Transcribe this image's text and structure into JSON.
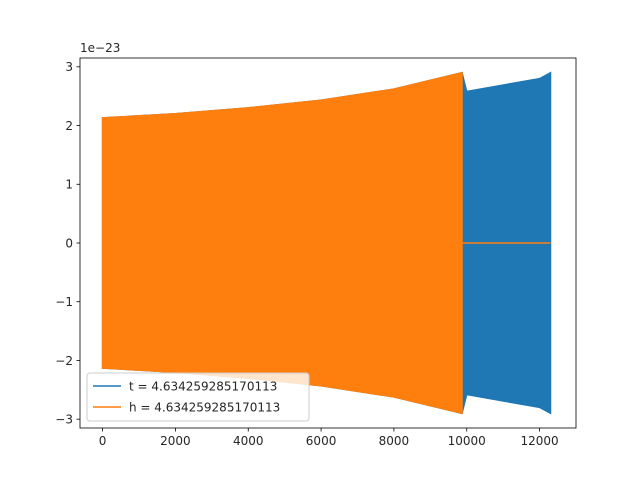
{
  "chart_data": {
    "type": "line",
    "title": "",
    "xlabel": "",
    "ylabel": "",
    "scale_label": "1e−23",
    "xlim": [
      -620,
      13000
    ],
    "ylim": [
      -3.15,
      3.15
    ],
    "xticks": [
      0,
      2000,
      4000,
      6000,
      8000,
      10000,
      12000
    ],
    "xtick_labels": [
      "0",
      "2000",
      "4000",
      "6000",
      "8000",
      "10000",
      "12000"
    ],
    "yticks": [
      -3,
      -2,
      -1,
      0,
      1,
      2,
      3
    ],
    "ytick_labels": [
      "−3",
      "−2",
      "−1",
      "0",
      "1",
      "2",
      "3"
    ],
    "grid": false,
    "legend_position": "lower-left",
    "series": [
      {
        "name": "t = 4.634259285170113",
        "color": "#1f77b4",
        "envelope": {
          "x": [
            0,
            2000,
            4000,
            6000,
            8000,
            9870,
            10000,
            12000,
            12300
          ],
          "upper": [
            2.13,
            2.2,
            2.3,
            2.43,
            2.62,
            2.9,
            2.58,
            2.8,
            2.9
          ],
          "lower": [
            -2.13,
            -2.2,
            -2.3,
            -2.43,
            -2.62,
            -2.9,
            -2.58,
            -2.8,
            -2.9
          ]
        },
        "flat_segment": {
          "x": [
            9870,
            12300
          ],
          "y": 0
        }
      },
      {
        "name": "h = 4.634259285170113",
        "color": "#ff7f0e",
        "envelope": {
          "x": [
            0,
            2000,
            4000,
            6000,
            8000,
            9870
          ],
          "upper": [
            2.13,
            2.2,
            2.3,
            2.43,
            2.62,
            2.9
          ],
          "lower": [
            -2.13,
            -2.2,
            -2.3,
            -2.43,
            -2.62,
            -2.9
          ]
        },
        "flat_segment": {
          "x": [
            9870,
            12300
          ],
          "y": 0
        }
      }
    ]
  }
}
